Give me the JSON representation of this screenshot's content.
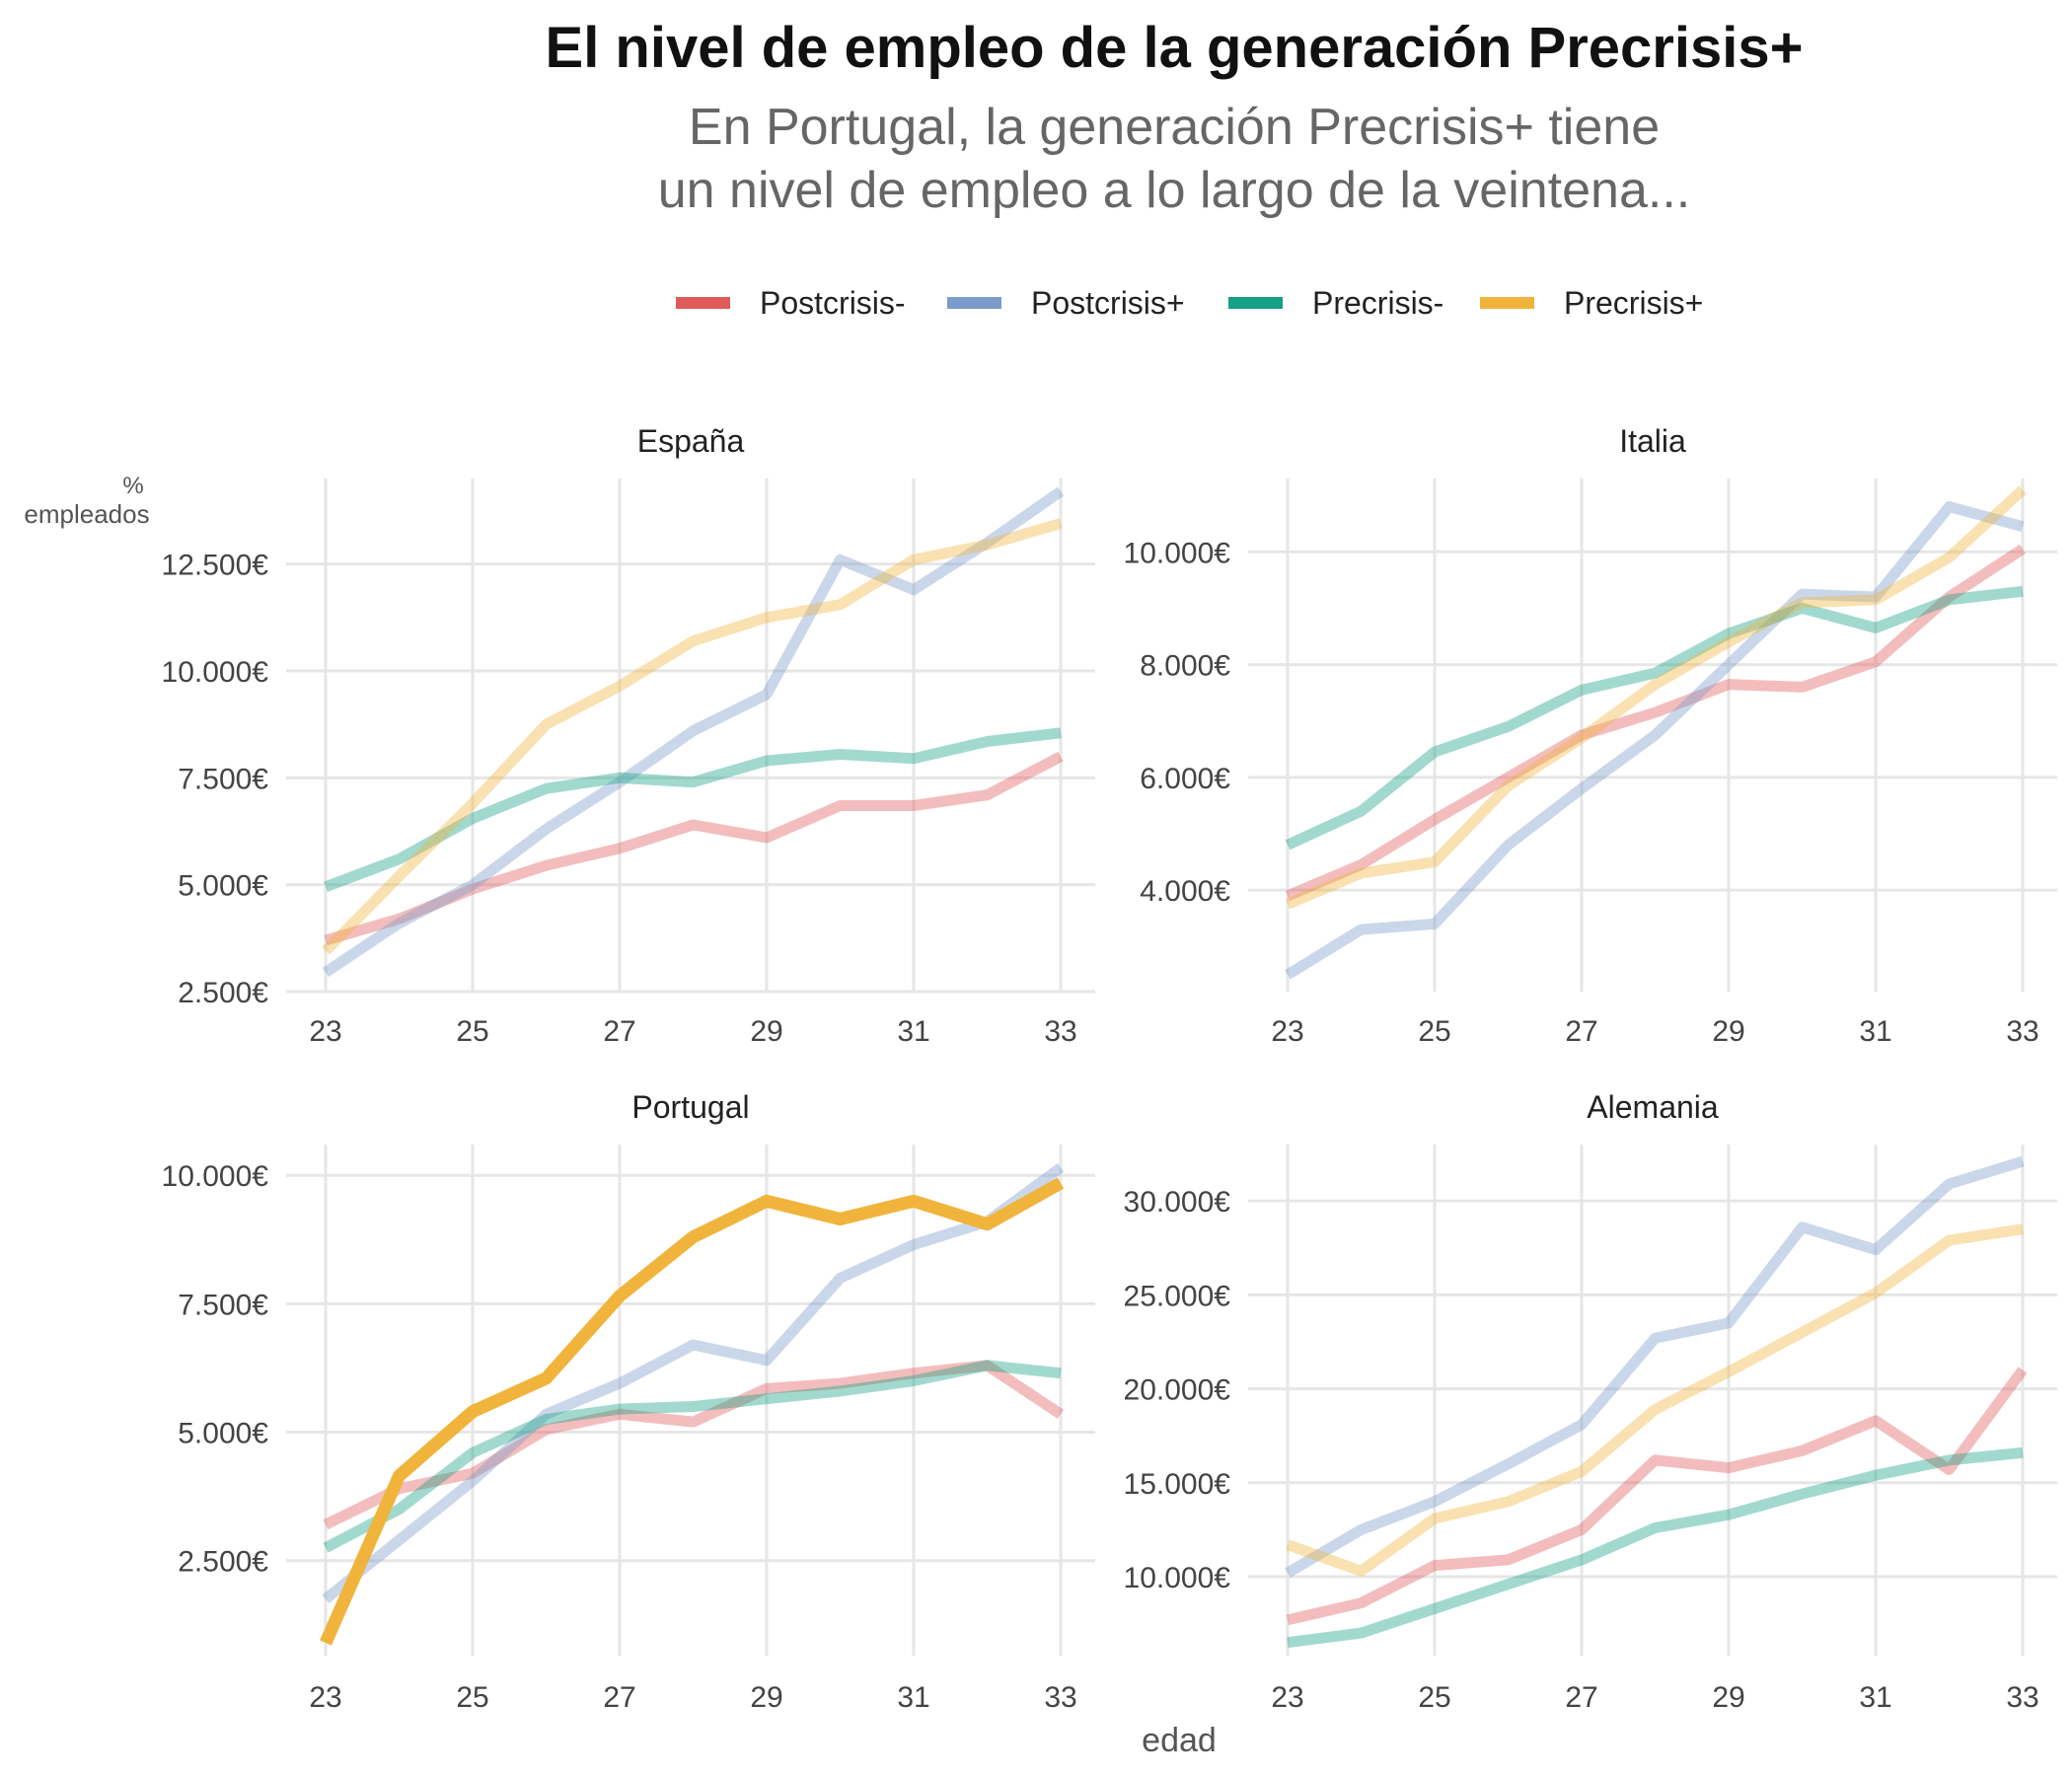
{
  "title": "El nivel de empleo de la generación Precrisis+",
  "subtitle": [
    "En Portugal, la generación Precrisis+ tiene",
    "un nivel de empleo a lo largo de la veintena..."
  ],
  "x_axis_title": "edad",
  "y_axis_title": [
    "%",
    "empleados"
  ],
  "legend": [
    {
      "name": "Postcrisis-",
      "color": "#e05a5a"
    },
    {
      "name": "Postcrisis+",
      "color": "#7b9bca"
    },
    {
      "name": "Precrisis-",
      "color": "#16a085"
    },
    {
      "name": "Precrisis+",
      "color": "#f0b43c"
    }
  ],
  "chart_data": [
    {
      "type": "line",
      "title": "España",
      "x": [
        23,
        24,
        25,
        26,
        27,
        28,
        29,
        30,
        31,
        32,
        33
      ],
      "x_ticks": [
        23,
        25,
        27,
        29,
        31,
        33
      ],
      "y_ticks": [
        2500,
        5000,
        7500,
        10000,
        12500
      ],
      "y_tick_labels": [
        "2.500€",
        "5.000€",
        "7.500€",
        "10.000€",
        "12.500€"
      ],
      "ylim": [
        2500,
        14500
      ],
      "highlight": null,
      "series": [
        {
          "name": "Postcrisis-",
          "values": [
            3700,
            4200,
            4900,
            5450,
            5850,
            6400,
            6100,
            6850,
            6850,
            7100,
            8000
          ]
        },
        {
          "name": "Postcrisis+",
          "values": [
            2950,
            4100,
            5000,
            6300,
            7400,
            8600,
            9450,
            12600,
            11900,
            13000,
            14200
          ]
        },
        {
          "name": "Precrisis-",
          "values": [
            4950,
            5600,
            6550,
            7250,
            7500,
            7400,
            7900,
            8050,
            7950,
            8350,
            8550
          ]
        },
        {
          "name": "Precrisis+",
          "values": [
            3450,
            5200,
            6900,
            8750,
            9650,
            10700,
            11250,
            11550,
            12600,
            12950,
            13450
          ]
        }
      ]
    },
    {
      "type": "line",
      "title": "Italia",
      "x": [
        23,
        24,
        25,
        26,
        27,
        28,
        29,
        30,
        31,
        32,
        33
      ],
      "x_ticks": [
        23,
        25,
        27,
        29,
        31,
        33
      ],
      "y_ticks": [
        4000,
        6000,
        8000,
        10000
      ],
      "y_tick_labels": [
        "4.000€",
        "6.000€",
        "8.000€",
        "10.000€"
      ],
      "ylim": [
        2200,
        11300
      ],
      "highlight": null,
      "series": [
        {
          "name": "Postcrisis-",
          "values": [
            3900,
            4450,
            5250,
            6000,
            6750,
            7150,
            7650,
            7600,
            8050,
            9200,
            10050
          ]
        },
        {
          "name": "Postcrisis+",
          "values": [
            2500,
            3300,
            3400,
            4800,
            5800,
            6750,
            8000,
            9250,
            9200,
            10800,
            10450
          ]
        },
        {
          "name": "Precrisis-",
          "values": [
            4800,
            5400,
            6450,
            6900,
            7550,
            7850,
            8550,
            9000,
            8650,
            9150,
            9300
          ]
        },
        {
          "name": "Precrisis+",
          "values": [
            3750,
            4300,
            4500,
            5850,
            6700,
            7650,
            8400,
            9100,
            9150,
            9900,
            11100
          ]
        }
      ]
    },
    {
      "type": "line",
      "title": "Portugal",
      "x": [
        23,
        24,
        25,
        26,
        27,
        28,
        29,
        30,
        31,
        32,
        33
      ],
      "x_ticks": [
        23,
        25,
        27,
        29,
        31,
        33
      ],
      "y_ticks": [
        2500,
        5000,
        7500,
        10000
      ],
      "y_tick_labels": [
        "2.500€",
        "5.000€",
        "7.500€",
        "10.000€"
      ],
      "ylim": [
        650,
        10600
      ],
      "highlight": "Precrisis+",
      "series": [
        {
          "name": "Postcrisis-",
          "values": [
            3200,
            3900,
            4200,
            5050,
            5350,
            5200,
            5850,
            5950,
            6150,
            6300,
            5350
          ]
        },
        {
          "name": "Postcrisis+",
          "values": [
            1750,
            2900,
            4050,
            5350,
            5950,
            6700,
            6400,
            8000,
            8650,
            9100,
            10150
          ]
        },
        {
          "name": "Precrisis-",
          "values": [
            2750,
            3500,
            4600,
            5250,
            5450,
            5500,
            5650,
            5800,
            6000,
            6300,
            6150
          ]
        },
        {
          "name": "Precrisis+",
          "values": [
            900,
            4150,
            5400,
            6050,
            7650,
            8800,
            9500,
            9150,
            9500,
            9050,
            9850
          ]
        }
      ]
    },
    {
      "type": "line",
      "title": "Alemania",
      "x": [
        23,
        24,
        25,
        26,
        27,
        28,
        29,
        30,
        31,
        32,
        33
      ],
      "x_ticks": [
        23,
        25,
        27,
        29,
        31,
        33
      ],
      "y_ticks": [
        10000,
        15000,
        20000,
        25000,
        30000
      ],
      "y_tick_labels": [
        "10.000€",
        "15.000€",
        "20.000€",
        "25.000€",
        "30.000€"
      ],
      "ylim": [
        5800,
        33000
      ],
      "highlight": null,
      "series": [
        {
          "name": "Postcrisis-",
          "values": [
            7700,
            8600,
            10600,
            10900,
            12500,
            16200,
            15800,
            16700,
            18300,
            15700,
            21000
          ]
        },
        {
          "name": "Postcrisis+",
          "values": [
            10200,
            12500,
            14000,
            16000,
            18100,
            22700,
            23500,
            28600,
            27400,
            30900,
            32100
          ]
        },
        {
          "name": "Precrisis-",
          "values": [
            6500,
            7000,
            8300,
            9600,
            10900,
            12600,
            13300,
            14400,
            15400,
            16200,
            16600
          ]
        },
        {
          "name": "Precrisis+",
          "values": [
            11700,
            10300,
            13100,
            14000,
            15600,
            18900,
            20900,
            23000,
            25100,
            27900,
            28500
          ]
        }
      ]
    }
  ]
}
